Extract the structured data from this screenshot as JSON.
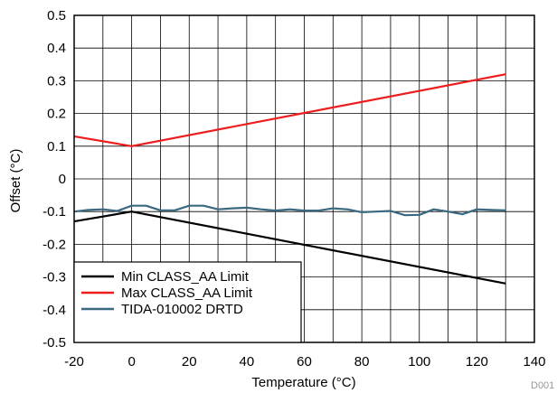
{
  "chart_data": {
    "type": "line",
    "xlabel": "Temperature  (°C)",
    "ylabel": "Offset  (°C)",
    "xlim": [
      -20,
      140
    ],
    "ylim": [
      -0.5,
      0.5
    ],
    "x_ticks": [
      -20,
      0,
      20,
      40,
      60,
      80,
      100,
      120,
      140
    ],
    "y_ticks": [
      -0.5,
      -0.4,
      -0.3,
      -0.2,
      -0.1,
      0,
      0.1,
      0.2,
      0.3,
      0.4,
      0.5
    ],
    "x_tick_labels": [
      "-20",
      "0",
      "20",
      "40",
      "60",
      "80",
      "100",
      "120",
      "140"
    ],
    "y_tick_labels": [
      "-0.5",
      "-0.4",
      "-0.3",
      "-0.2",
      "-0.1",
      "0",
      "0.1",
      "0.2",
      "0.3",
      "0.4",
      "0.5"
    ],
    "grid": true,
    "legend_position": "bottom-left",
    "series": [
      {
        "name": "Min CLASS_AA Limit",
        "color": "#000000",
        "x": [
          -20,
          0,
          130
        ],
        "y": [
          -0.13,
          -0.1,
          -0.32
        ]
      },
      {
        "name": "Max CLASS_AA Limit",
        "color": "#ee1c1c",
        "x": [
          -20,
          0,
          130
        ],
        "y": [
          0.13,
          0.1,
          0.32
        ]
      },
      {
        "name": "TIDA-010002 DRTD",
        "color": "#3a6880",
        "x": [
          -20,
          -15,
          -10,
          -5,
          0,
          5,
          10,
          15,
          20,
          25,
          30,
          35,
          40,
          45,
          50,
          55,
          60,
          65,
          70,
          75,
          80,
          85,
          90,
          95,
          100,
          105,
          110,
          115,
          120,
          125,
          130
        ],
        "y": [
          -0.1,
          -0.095,
          -0.093,
          -0.098,
          -0.082,
          -0.082,
          -0.096,
          -0.096,
          -0.082,
          -0.082,
          -0.093,
          -0.09,
          -0.088,
          -0.093,
          -0.097,
          -0.093,
          -0.097,
          -0.097,
          -0.09,
          -0.093,
          -0.102,
          -0.1,
          -0.098,
          -0.111,
          -0.11,
          -0.093,
          -0.1,
          -0.108,
          -0.093,
          -0.095,
          -0.096
        ]
      }
    ]
  },
  "footnote": "D001"
}
